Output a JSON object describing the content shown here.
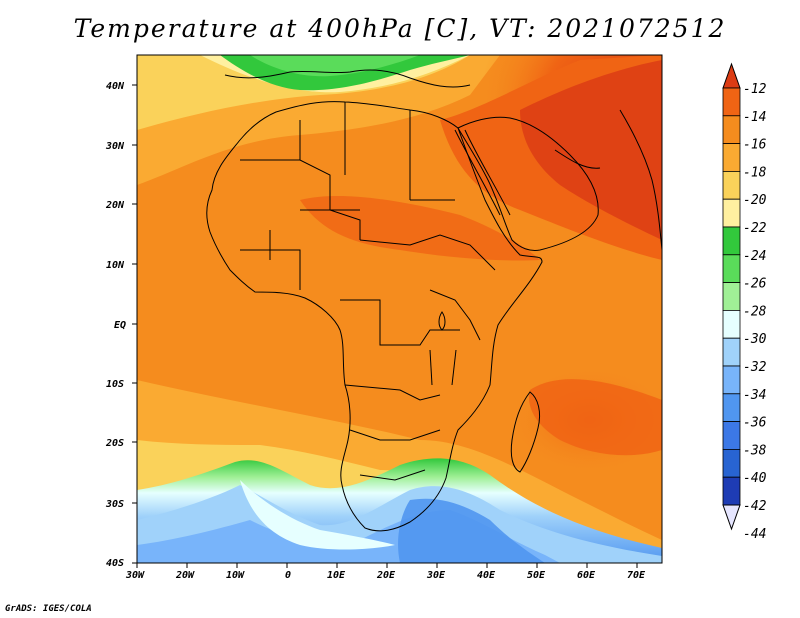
{
  "title": "Temperature at 400hPa [C], VT: 2021072512",
  "credit": "GrADS: IGES/COLA",
  "axes": {
    "lat_labels": [
      "40N",
      "30N",
      "20N",
      "10N",
      "EQ",
      "10S",
      "20S",
      "30S",
      "40S"
    ],
    "lon_labels": [
      "30W",
      "20W",
      "10W",
      "0",
      "10E",
      "20E",
      "30E",
      "40E",
      "50E",
      "60E",
      "70E"
    ]
  },
  "colorbar": {
    "labels": [
      "-12",
      "-14",
      "-16",
      "-18",
      "-20",
      "-22",
      "-24",
      "-26",
      "-28",
      "-30",
      "-32",
      "-34",
      "-36",
      "-38",
      "-40",
      "-42",
      "-44"
    ],
    "colors": [
      "#dc3c14",
      "#f06414",
      "#f58c1e",
      "#faaa32",
      "#fad25a",
      "#fff0a0",
      "#32c83c",
      "#5adc5a",
      "#a0f096",
      "#e6ffff",
      "#a0d2fa",
      "#78b4fa",
      "#5096f0",
      "#3c78e6",
      "#2864d2",
      "#1e3cb4",
      "#0a1464"
    ]
  },
  "map": {
    "region": "Africa",
    "lon_range": [
      -30,
      76
    ],
    "lat_range": [
      -40,
      45
    ],
    "contour_units": "C"
  }
}
